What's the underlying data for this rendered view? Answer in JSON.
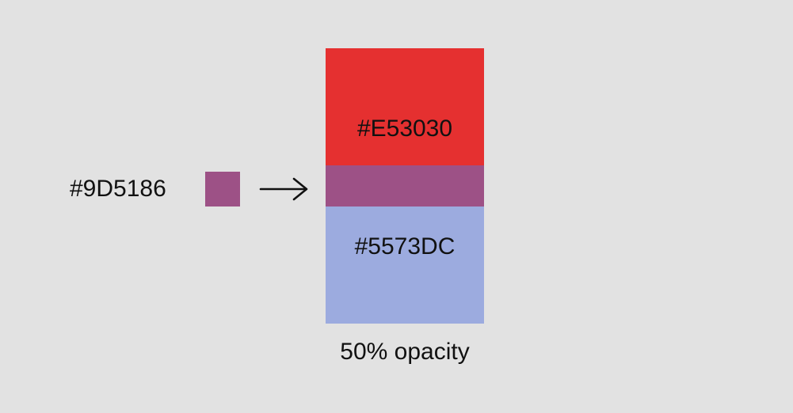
{
  "blend_example": {
    "result": {
      "label": "#9D5186",
      "color": "#9D5186"
    },
    "top_layer": {
      "label": "#E53030",
      "color": "#E53030"
    },
    "bottom_layer": {
      "label": "#5573DC",
      "color": "#5573DC"
    },
    "caption": "50% opacity",
    "arrow_icon": "right-arrow-icon"
  }
}
